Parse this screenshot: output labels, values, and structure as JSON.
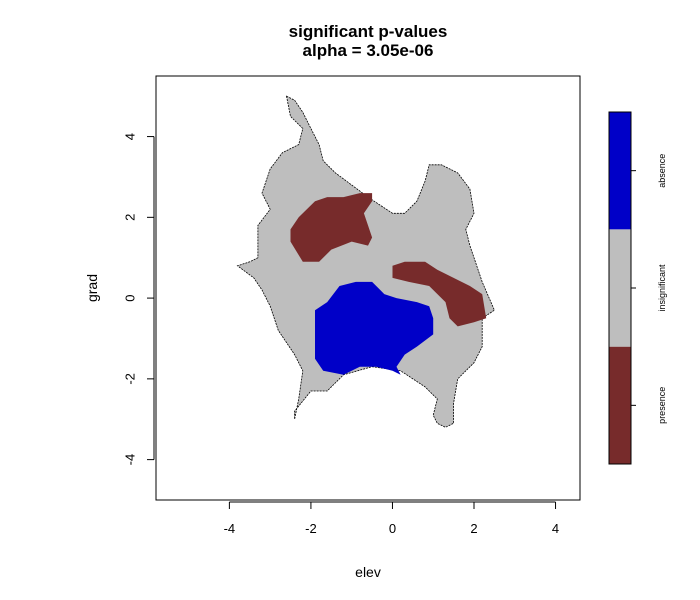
{
  "chart_data": {
    "type": "heatmap",
    "title": "significant p-values",
    "subtitle": "alpha = 3.05e-06",
    "xlabel": "elev",
    "ylabel": "grad",
    "xlim": [
      -5.8,
      4.6
    ],
    "ylim": [
      -5.0,
      5.5
    ],
    "x_ticks": [
      -4,
      -2,
      0,
      2,
      4
    ],
    "y_ticks": [
      -4,
      -2,
      0,
      2,
      4
    ],
    "categories": [
      "presence",
      "insignificant",
      "absence"
    ],
    "colors": {
      "presence": "#772b2b",
      "insignificant": "#bebebe",
      "absence": "#0000c8",
      "frame": "#000000"
    },
    "regions": [
      {
        "category": "insignificant",
        "polygon": [
          [
            -2.6,
            5.0
          ],
          [
            -2.4,
            4.9
          ],
          [
            -2.2,
            4.6
          ],
          [
            -2.0,
            4.2
          ],
          [
            -1.8,
            3.8
          ],
          [
            -1.7,
            3.4
          ],
          [
            -1.4,
            3.1
          ],
          [
            -1.0,
            2.8
          ],
          [
            -0.6,
            2.5
          ],
          [
            -0.3,
            2.3
          ],
          [
            0.0,
            2.1
          ],
          [
            0.3,
            2.1
          ],
          [
            0.6,
            2.4
          ],
          [
            0.8,
            2.9
          ],
          [
            0.9,
            3.3
          ],
          [
            1.2,
            3.3
          ],
          [
            1.6,
            3.1
          ],
          [
            1.9,
            2.7
          ],
          [
            2.0,
            2.1
          ],
          [
            1.8,
            1.7
          ],
          [
            1.9,
            1.3
          ],
          [
            2.2,
            0.4
          ],
          [
            2.5,
            -0.3
          ],
          [
            2.2,
            -0.5
          ],
          [
            2.2,
            -1.2
          ],
          [
            2.0,
            -1.6
          ],
          [
            1.6,
            -2.0
          ],
          [
            1.5,
            -2.6
          ],
          [
            1.5,
            -3.1
          ],
          [
            1.3,
            -3.2
          ],
          [
            1.1,
            -3.1
          ],
          [
            1.0,
            -2.9
          ],
          [
            1.1,
            -2.5
          ],
          [
            0.8,
            -2.2
          ],
          [
            0.2,
            -1.8
          ],
          [
            -0.5,
            -1.7
          ],
          [
            -1.2,
            -1.9
          ],
          [
            -1.6,
            -2.3
          ],
          [
            -2.0,
            -2.3
          ],
          [
            -2.4,
            -2.8
          ],
          [
            -2.4,
            -3.0
          ],
          [
            -2.3,
            -2.5
          ],
          [
            -2.2,
            -1.8
          ],
          [
            -2.4,
            -1.4
          ],
          [
            -2.8,
            -0.8
          ],
          [
            -3.0,
            -0.2
          ],
          [
            -3.2,
            0.2
          ],
          [
            -3.4,
            0.5
          ],
          [
            -3.8,
            0.8
          ],
          [
            -3.5,
            0.9
          ],
          [
            -3.3,
            1.0
          ],
          [
            -3.3,
            1.8
          ],
          [
            -3.0,
            2.2
          ],
          [
            -3.2,
            2.6
          ],
          [
            -3.0,
            3.2
          ],
          [
            -2.7,
            3.6
          ],
          [
            -2.3,
            3.8
          ],
          [
            -2.2,
            4.2
          ],
          [
            -2.5,
            4.5
          ],
          [
            -2.6,
            5.0
          ]
        ]
      },
      {
        "category": "presence",
        "polygon": [
          [
            -2.5,
            1.4
          ],
          [
            -2.2,
            0.9
          ],
          [
            -1.8,
            0.9
          ],
          [
            -1.5,
            1.2
          ],
          [
            -1.0,
            1.4
          ],
          [
            -0.6,
            1.3
          ],
          [
            -0.5,
            1.5
          ],
          [
            -0.6,
            1.8
          ],
          [
            -0.7,
            2.1
          ],
          [
            -0.5,
            2.4
          ],
          [
            -0.5,
            2.6
          ],
          [
            -0.8,
            2.6
          ],
          [
            -1.2,
            2.5
          ],
          [
            -1.6,
            2.5
          ],
          [
            -1.9,
            2.4
          ],
          [
            -2.3,
            2.0
          ],
          [
            -2.5,
            1.7
          ],
          [
            -2.5,
            1.4
          ]
        ]
      },
      {
        "category": "presence",
        "polygon": [
          [
            0.0,
            0.8
          ],
          [
            0.3,
            0.9
          ],
          [
            0.8,
            0.9
          ],
          [
            1.1,
            0.7
          ],
          [
            1.5,
            0.5
          ],
          [
            1.9,
            0.3
          ],
          [
            2.2,
            0.1
          ],
          [
            2.3,
            -0.5
          ],
          [
            2.0,
            -0.6
          ],
          [
            1.6,
            -0.7
          ],
          [
            1.4,
            -0.5
          ],
          [
            1.3,
            -0.1
          ],
          [
            0.9,
            0.3
          ],
          [
            0.4,
            0.4
          ],
          [
            0.0,
            0.5
          ],
          [
            0.0,
            0.8
          ]
        ]
      },
      {
        "category": "absence",
        "polygon": [
          [
            -1.9,
            -0.3
          ],
          [
            -1.6,
            -0.1
          ],
          [
            -1.3,
            0.3
          ],
          [
            -0.9,
            0.4
          ],
          [
            -0.5,
            0.4
          ],
          [
            -0.2,
            0.1
          ],
          [
            0.1,
            0.0
          ],
          [
            0.6,
            -0.1
          ],
          [
            0.9,
            -0.2
          ],
          [
            1.0,
            -0.5
          ],
          [
            1.0,
            -0.9
          ],
          [
            0.6,
            -1.2
          ],
          [
            0.3,
            -1.4
          ],
          [
            0.1,
            -1.7
          ],
          [
            0.2,
            -1.9
          ],
          [
            0.0,
            -1.8
          ],
          [
            -0.4,
            -1.7
          ],
          [
            -0.8,
            -1.7
          ],
          [
            -1.2,
            -1.9
          ],
          [
            -1.7,
            -1.8
          ],
          [
            -1.9,
            -1.5
          ],
          [
            -1.9,
            -0.9
          ],
          [
            -1.9,
            -0.3
          ]
        ]
      }
    ],
    "legend": {
      "position": "right",
      "labels": [
        "presence",
        "insignificant",
        "absence"
      ]
    }
  }
}
